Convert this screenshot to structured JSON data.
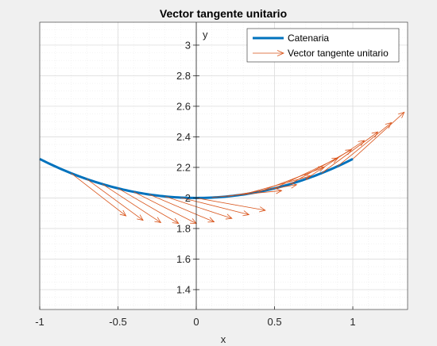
{
  "chart_data": {
    "type": "line",
    "title": "Vector tangente unitario",
    "xlabel": "x",
    "ylabel": "y",
    "xlim": [
      -1,
      1.35
    ],
    "ylim": [
      1.27,
      3.15
    ],
    "xticks": [
      -1,
      -0.5,
      0,
      0.5,
      1
    ],
    "xtick_labels": [
      "-1",
      "-0.5",
      "0",
      "0.5",
      "1"
    ],
    "yticks": [
      1.4,
      1.6,
      1.8,
      2,
      2.2,
      2.4,
      2.6,
      2.8,
      3
    ],
    "ytick_labels": [
      "1.4",
      "1.6",
      "1.8",
      "2",
      "2.2",
      "2.4",
      "2.6",
      "2.8",
      "3"
    ],
    "grid": true,
    "minor_grid": true,
    "axis_location": "origin",
    "legend_position": "top-right",
    "series": [
      {
        "name": "Catenaria",
        "kind": "curve",
        "function": "y = 2*cosh(x/2)",
        "x_range": [
          -1,
          1
        ],
        "color": "#0072bd"
      },
      {
        "name": "Vector tangente unitario",
        "kind": "quiver",
        "color": "#d95319",
        "points": [
          {
            "x": -0.8,
            "y": 2.162
          },
          {
            "x": -0.7,
            "y": 2.124
          },
          {
            "x": -0.6,
            "y": 2.091
          },
          {
            "x": -0.5,
            "y": 2.063
          },
          {
            "x": -0.4,
            "y": 2.04
          },
          {
            "x": -0.3,
            "y": 2.023
          },
          {
            "x": -0.2,
            "y": 2.01
          },
          {
            "x": -0.1,
            "y": 2.003
          },
          {
            "x": 0.0,
            "y": 2.0
          },
          {
            "x": 0.1,
            "y": 2.003
          },
          {
            "x": 0.2,
            "y": 2.01
          },
          {
            "x": 0.3,
            "y": 2.023
          },
          {
            "x": 0.4,
            "y": 2.04
          },
          {
            "x": 0.5,
            "y": 2.063
          },
          {
            "x": 0.6,
            "y": 2.091
          },
          {
            "x": 0.7,
            "y": 2.124
          },
          {
            "x": 0.8,
            "y": 2.162
          },
          {
            "x": 0.9,
            "y": 2.205
          },
          {
            "x": 1.0,
            "y": 2.255
          }
        ],
        "vectors": [
          {
            "u": 0.78,
            "v": -0.62
          },
          {
            "u": 0.8,
            "v": -0.6
          },
          {
            "u": 0.83,
            "v": -0.56
          },
          {
            "u": 0.86,
            "v": -0.51
          },
          {
            "u": 0.89,
            "v": -0.46
          },
          {
            "u": 0.92,
            "v": -0.4
          },
          {
            "u": 0.95,
            "v": -0.32
          },
          {
            "u": 0.97,
            "v": -0.25
          },
          {
            "u": 0.98,
            "v": -0.18
          },
          {
            "u": 0.99,
            "v": 0.1
          },
          {
            "u": 0.98,
            "v": 0.17
          },
          {
            "u": 0.96,
            "v": 0.27
          },
          {
            "u": 0.93,
            "v": 0.36
          },
          {
            "u": 0.9,
            "v": 0.44
          },
          {
            "u": 0.87,
            "v": 0.5
          },
          {
            "u": 0.83,
            "v": 0.56
          },
          {
            "u": 0.8,
            "v": 0.6
          },
          {
            "u": 0.77,
            "v": 0.64
          },
          {
            "u": 0.73,
            "v": 0.68
          }
        ],
        "vector_scale": 0.45
      }
    ]
  }
}
